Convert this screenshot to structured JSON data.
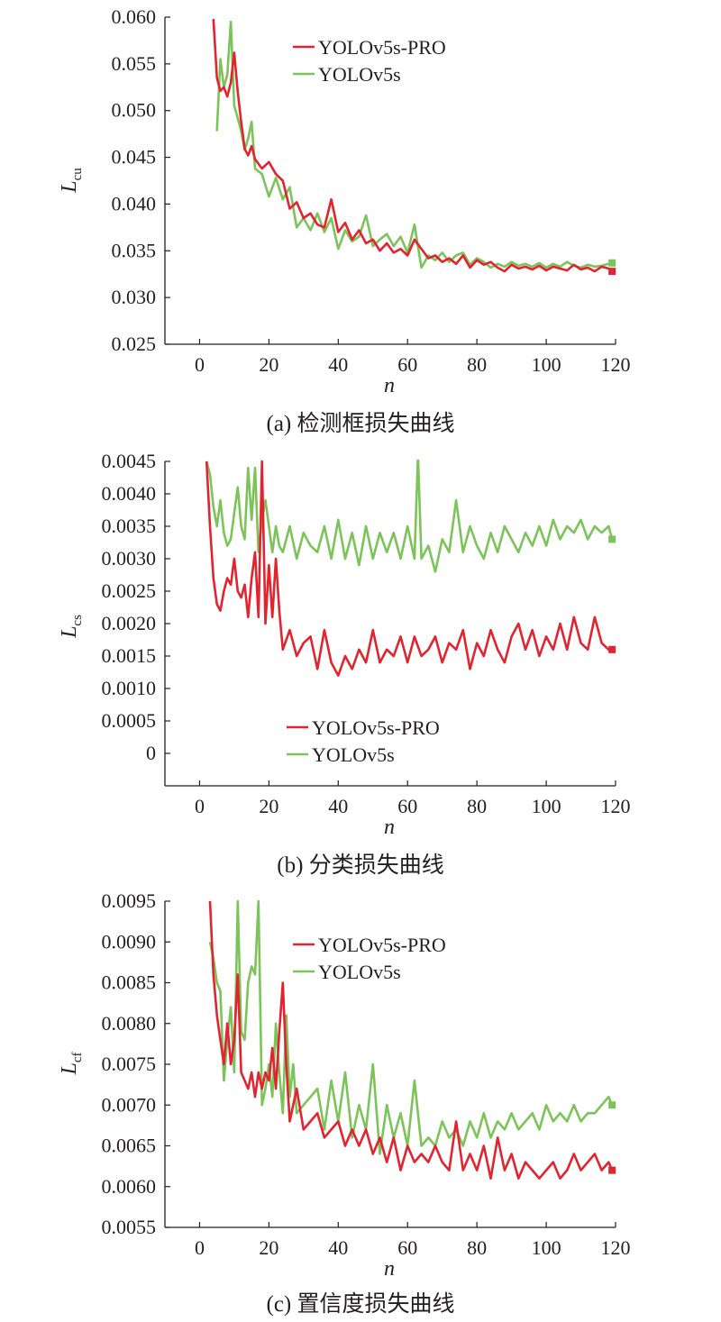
{
  "colors": {
    "series_pro": "#e1242f",
    "series_base": "#7cc35a",
    "axis": "#231f20"
  },
  "chart_data": [
    {
      "type": "line",
      "caption": "(a) 检测框损失曲线",
      "ylabel_main": "L",
      "ylabel_sub": "cu",
      "xlabel": "n",
      "xlim": [
        -10,
        120
      ],
      "ylim": [
        0.025,
        0.06
      ],
      "xticks": [
        0,
        20,
        40,
        60,
        80,
        100,
        120
      ],
      "xtick_labels": [
        "0",
        "20",
        "40",
        "60",
        "80",
        "100",
        "120"
      ],
      "yticks": [
        0.025,
        0.03,
        0.035,
        0.04,
        0.045,
        0.05,
        0.055,
        0.06
      ],
      "ytick_labels": [
        "0.025",
        "0.030",
        "0.035",
        "0.040",
        "0.045",
        "0.050",
        "0.055",
        "0.060"
      ],
      "legend_position": "top-right",
      "series": [
        {
          "name": "YOLOv5s-PRO",
          "x": [
            4,
            5,
            6,
            7,
            8,
            9,
            10,
            11,
            12,
            13,
            14,
            15,
            16,
            18,
            20,
            22,
            24,
            26,
            28,
            30,
            32,
            34,
            36,
            38,
            40,
            42,
            44,
            46,
            48,
            50,
            52,
            54,
            56,
            58,
            60,
            62,
            64,
            66,
            68,
            70,
            72,
            74,
            76,
            78,
            80,
            82,
            84,
            86,
            88,
            90,
            92,
            94,
            96,
            98,
            100,
            102,
            104,
            106,
            108,
            110,
            112,
            114,
            116,
            118,
            119
          ],
          "values": [
            0.0598,
            0.0535,
            0.0521,
            0.0525,
            0.0515,
            0.053,
            0.0562,
            0.052,
            0.0488,
            0.0459,
            0.0452,
            0.0462,
            0.0448,
            0.0438,
            0.0445,
            0.0432,
            0.0425,
            0.0395,
            0.0402,
            0.0385,
            0.039,
            0.0378,
            0.0375,
            0.0405,
            0.037,
            0.038,
            0.0362,
            0.0372,
            0.0358,
            0.0362,
            0.035,
            0.0358,
            0.0348,
            0.0352,
            0.0345,
            0.0362,
            0.0352,
            0.0342,
            0.0345,
            0.0338,
            0.0342,
            0.0336,
            0.0345,
            0.0332,
            0.034,
            0.0335,
            0.0338,
            0.0332,
            0.0328,
            0.0335,
            0.0331,
            0.0333,
            0.033,
            0.0334,
            0.0329,
            0.0333,
            0.0331,
            0.0329,
            0.0335,
            0.033,
            0.0332,
            0.0328,
            0.0333,
            0.0331,
            0.0328
          ]
        },
        {
          "name": "YOLOv5s",
          "x": [
            5,
            6,
            7,
            8,
            9,
            10,
            11,
            12,
            13,
            14,
            15,
            16,
            18,
            20,
            22,
            24,
            26,
            28,
            30,
            32,
            34,
            36,
            38,
            40,
            42,
            44,
            46,
            48,
            50,
            52,
            54,
            56,
            58,
            60,
            62,
            64,
            66,
            68,
            70,
            72,
            74,
            76,
            78,
            80,
            82,
            84,
            86,
            88,
            90,
            92,
            94,
            96,
            98,
            100,
            102,
            104,
            106,
            108,
            110,
            112,
            114,
            116,
            118,
            119
          ],
          "values": [
            0.0478,
            0.0555,
            0.0525,
            0.0538,
            0.0595,
            0.0505,
            0.0492,
            0.0478,
            0.0458,
            0.047,
            0.0488,
            0.0438,
            0.0432,
            0.0408,
            0.0428,
            0.0405,
            0.0418,
            0.0375,
            0.0385,
            0.0372,
            0.039,
            0.037,
            0.0385,
            0.0352,
            0.0372,
            0.036,
            0.0365,
            0.0388,
            0.0355,
            0.0362,
            0.0368,
            0.0355,
            0.0365,
            0.0348,
            0.0378,
            0.0332,
            0.0345,
            0.034,
            0.0348,
            0.0338,
            0.0345,
            0.0348,
            0.0335,
            0.0342,
            0.0338,
            0.0332,
            0.0336,
            0.0333,
            0.0338,
            0.0334,
            0.0336,
            0.0333,
            0.0337,
            0.0332,
            0.0336,
            0.0333,
            0.0338,
            0.0334,
            0.0332,
            0.0335,
            0.0333,
            0.0334,
            0.0336,
            0.0337
          ]
        }
      ]
    },
    {
      "type": "line",
      "caption": "(b) 分类损失曲线",
      "ylabel_main": "L",
      "ylabel_sub": "cs",
      "xlabel": "n",
      "xlim": [
        -10,
        120
      ],
      "ylim": [
        -0.0005,
        0.0045
      ],
      "xticks": [
        0,
        20,
        40,
        60,
        80,
        100,
        120
      ],
      "xtick_labels": [
        "0",
        "20",
        "40",
        "60",
        "80",
        "100",
        "120"
      ],
      "yticks": [
        0,
        0.0005,
        0.001,
        0.0015,
        0.002,
        0.0025,
        0.003,
        0.0035,
        0.004,
        0.0045
      ],
      "ytick_labels": [
        "0",
        "0.0005",
        "0.0010",
        "0.0015",
        "0.0020",
        "0.0025",
        "0.0030",
        "0.0035",
        "0.0040",
        "0.0045"
      ],
      "legend_position": "bottom-center",
      "series": [
        {
          "name": "YOLOv5s-PRO",
          "x": [
            2,
            3,
            4,
            5,
            6,
            7,
            8,
            9,
            10,
            11,
            12,
            13,
            14,
            15,
            16,
            17,
            18,
            19,
            20,
            21,
            22,
            23,
            24,
            26,
            28,
            30,
            32,
            34,
            36,
            38,
            40,
            42,
            44,
            46,
            48,
            50,
            52,
            54,
            56,
            58,
            60,
            62,
            64,
            66,
            68,
            70,
            72,
            74,
            76,
            78,
            80,
            82,
            84,
            86,
            88,
            90,
            92,
            94,
            96,
            98,
            100,
            102,
            104,
            106,
            108,
            110,
            112,
            114,
            116,
            118,
            119
          ],
          "values": [
            0.0045,
            0.0035,
            0.0027,
            0.0023,
            0.0022,
            0.0025,
            0.0027,
            0.0026,
            0.003,
            0.0025,
            0.0024,
            0.0026,
            0.0021,
            0.0027,
            0.0031,
            0.0021,
            0.0045,
            0.002,
            0.0029,
            0.0021,
            0.003,
            0.0022,
            0.0016,
            0.0019,
            0.0015,
            0.0017,
            0.0018,
            0.0013,
            0.0019,
            0.0014,
            0.0012,
            0.0015,
            0.0013,
            0.0016,
            0.0014,
            0.0019,
            0.0014,
            0.0016,
            0.0015,
            0.0018,
            0.0014,
            0.0018,
            0.0015,
            0.0016,
            0.0018,
            0.0014,
            0.0017,
            0.0016,
            0.0019,
            0.0013,
            0.0017,
            0.0015,
            0.0019,
            0.0016,
            0.0014,
            0.0018,
            0.002,
            0.0016,
            0.0019,
            0.0015,
            0.0018,
            0.0016,
            0.002,
            0.0016,
            0.0021,
            0.0017,
            0.0016,
            0.0021,
            0.0017,
            0.0016,
            0.0016
          ]
        },
        {
          "name": "YOLOv5s",
          "x": [
            2,
            3,
            4,
            5,
            6,
            7,
            8,
            9,
            10,
            11,
            12,
            13,
            14,
            15,
            16,
            17,
            18,
            19,
            20,
            21,
            22,
            23,
            24,
            26,
            28,
            30,
            32,
            34,
            36,
            38,
            40,
            42,
            44,
            46,
            48,
            50,
            52,
            54,
            56,
            58,
            60,
            62,
            63,
            64,
            66,
            68,
            70,
            72,
            74,
            76,
            78,
            80,
            82,
            84,
            86,
            88,
            90,
            92,
            94,
            96,
            98,
            100,
            102,
            104,
            106,
            108,
            110,
            112,
            114,
            116,
            118,
            119
          ],
          "values": [
            0.0045,
            0.0043,
            0.0038,
            0.0035,
            0.0039,
            0.0034,
            0.0032,
            0.0033,
            0.0037,
            0.0041,
            0.0035,
            0.0033,
            0.0044,
            0.0036,
            0.0044,
            0.0031,
            0.0036,
            0.0039,
            0.0035,
            0.0031,
            0.0035,
            0.0032,
            0.0031,
            0.0035,
            0.003,
            0.0034,
            0.0032,
            0.0031,
            0.0035,
            0.003,
            0.0036,
            0.003,
            0.0034,
            0.0029,
            0.0035,
            0.003,
            0.0034,
            0.0031,
            0.0034,
            0.003,
            0.0035,
            0.003,
            0.0046,
            0.003,
            0.0032,
            0.0028,
            0.0033,
            0.0031,
            0.0039,
            0.0031,
            0.0035,
            0.0032,
            0.003,
            0.0034,
            0.0031,
            0.0035,
            0.0033,
            0.0031,
            0.0034,
            0.0032,
            0.0035,
            0.0032,
            0.0036,
            0.0033,
            0.0035,
            0.0034,
            0.0036,
            0.0033,
            0.0035,
            0.0034,
            0.0035,
            0.0033
          ]
        }
      ]
    },
    {
      "type": "line",
      "caption": "(c) 置信度损失曲线",
      "ylabel_main": "L",
      "ylabel_sub": "cf",
      "xlabel": "n",
      "xlim": [
        -10,
        120
      ],
      "ylim": [
        0.0055,
        0.0095
      ],
      "xticks": [
        0,
        20,
        40,
        60,
        80,
        100,
        120
      ],
      "xtick_labels": [
        "0",
        "20",
        "40",
        "60",
        "80",
        "100",
        "120"
      ],
      "yticks": [
        0.0055,
        0.006,
        0.0065,
        0.007,
        0.0075,
        0.008,
        0.0085,
        0.009,
        0.0095
      ],
      "ytick_labels": [
        "0.0055",
        "0.0060",
        "0.0065",
        "0.0070",
        "0.0075",
        "0.0080",
        "0.0085",
        "0.0090",
        "0.0095"
      ],
      "legend_position": "top-right",
      "series": [
        {
          "name": "YOLOv5s-PRO",
          "x": [
            3,
            4,
            5,
            6,
            7,
            8,
            9,
            10,
            11,
            12,
            13,
            14,
            15,
            16,
            17,
            18,
            19,
            20,
            21,
            22,
            23,
            24,
            25,
            26,
            27,
            28,
            30,
            32,
            34,
            36,
            38,
            40,
            42,
            44,
            46,
            48,
            50,
            52,
            54,
            56,
            58,
            60,
            62,
            64,
            66,
            68,
            70,
            72,
            74,
            76,
            78,
            80,
            82,
            84,
            86,
            88,
            90,
            92,
            94,
            96,
            98,
            100,
            102,
            104,
            106,
            108,
            110,
            112,
            114,
            116,
            118,
            119
          ],
          "values": [
            0.0095,
            0.0086,
            0.0081,
            0.0078,
            0.0075,
            0.008,
            0.0075,
            0.0078,
            0.0086,
            0.0074,
            0.0073,
            0.0072,
            0.0074,
            0.0071,
            0.0074,
            0.0072,
            0.0074,
            0.0073,
            0.0077,
            0.0072,
            0.0079,
            0.0085,
            0.0075,
            0.0068,
            0.007,
            0.0072,
            0.0067,
            0.0068,
            0.0069,
            0.0066,
            0.0067,
            0.0068,
            0.0065,
            0.0067,
            0.0065,
            0.0067,
            0.0064,
            0.0066,
            0.0063,
            0.0066,
            0.0062,
            0.0065,
            0.0063,
            0.0064,
            0.0063,
            0.0065,
            0.0063,
            0.0062,
            0.0068,
            0.0062,
            0.0064,
            0.0062,
            0.0065,
            0.0061,
            0.0066,
            0.0062,
            0.0064,
            0.0061,
            0.0063,
            0.0062,
            0.0061,
            0.0062,
            0.0063,
            0.0061,
            0.0062,
            0.0064,
            0.0062,
            0.0063,
            0.0064,
            0.0062,
            0.0063,
            0.0062
          ]
        },
        {
          "name": "YOLOv5s",
          "x": [
            3,
            4,
            5,
            6,
            7,
            8,
            9,
            10,
            11,
            12,
            13,
            14,
            15,
            16,
            17,
            18,
            19,
            20,
            21,
            22,
            23,
            24,
            25,
            26,
            27,
            28,
            30,
            32,
            34,
            36,
            38,
            40,
            42,
            44,
            46,
            48,
            50,
            52,
            54,
            56,
            58,
            60,
            62,
            64,
            66,
            68,
            70,
            72,
            74,
            76,
            78,
            80,
            82,
            84,
            86,
            88,
            90,
            92,
            94,
            96,
            98,
            100,
            102,
            104,
            106,
            108,
            110,
            112,
            114,
            116,
            118,
            119
          ],
          "values": [
            0.009,
            0.0088,
            0.0085,
            0.0084,
            0.0073,
            0.0078,
            0.0082,
            0.0074,
            0.0095,
            0.0079,
            0.0078,
            0.0085,
            0.0087,
            0.0086,
            0.0095,
            0.007,
            0.0072,
            0.0075,
            0.0071,
            0.008,
            0.0074,
            0.0069,
            0.0081,
            0.0071,
            0.0075,
            0.0069,
            0.007,
            0.0071,
            0.0072,
            0.0067,
            0.0073,
            0.0068,
            0.0074,
            0.0066,
            0.007,
            0.0067,
            0.0075,
            0.0064,
            0.007,
            0.0066,
            0.0069,
            0.0065,
            0.0073,
            0.0065,
            0.0066,
            0.0065,
            0.0068,
            0.0066,
            0.0067,
            0.0065,
            0.0068,
            0.0066,
            0.0069,
            0.0066,
            0.0068,
            0.0067,
            0.0069,
            0.0067,
            0.0068,
            0.0069,
            0.0067,
            0.007,
            0.0068,
            0.0069,
            0.0068,
            0.007,
            0.0068,
            0.0069,
            0.0069,
            0.007,
            0.0071,
            0.007
          ]
        }
      ]
    }
  ]
}
